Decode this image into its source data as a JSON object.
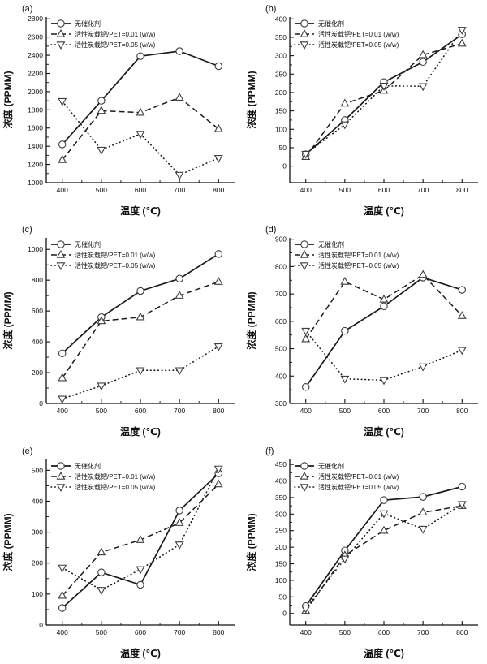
{
  "figure": {
    "background": "#ffffff",
    "axis_color": "#111111",
    "line_color": "#1a1a1a",
    "marker_stroke": "#3d3d3d",
    "marker_fill": "#ffffff"
  },
  "legend_labels": [
    "无催化剂",
    "活性炭载钯/PET=0.01 (w/w)",
    "活性炭载钯/PET=0.05 (w/w)"
  ],
  "chart_data": [
    {
      "panel_label": "(a)",
      "type": "line",
      "x": [
        400,
        500,
        600,
        700,
        800
      ],
      "xlabel": "温度 (℃)",
      "ylabel": "浓度 (PPMM)",
      "ylim": [
        1000,
        2820
      ],
      "yticks": [
        1000,
        1200,
        1400,
        1600,
        1800,
        2000,
        2200,
        2400,
        2600,
        2800
      ],
      "legend_position": "top-left",
      "grid": false,
      "series": [
        {
          "name": "无催化剂",
          "line": "solid",
          "marker": "circle",
          "values": [
            1420,
            1900,
            2390,
            2445,
            2280
          ]
        },
        {
          "name": "活性炭载钯/PET=0.01 (w/w)",
          "line": "dashed",
          "marker": "triangle-up",
          "values": [
            1250,
            1790,
            1770,
            1935,
            1590
          ]
        },
        {
          "name": "活性炭载钯/PET=0.05 (w/w)",
          "line": "dotted",
          "marker": "triangle-down",
          "values": [
            1895,
            1360,
            1535,
            1085,
            1270
          ]
        }
      ]
    },
    {
      "panel_label": "(b)",
      "type": "line",
      "x": [
        400,
        500,
        600,
        700,
        800
      ],
      "xlabel": "温度 (℃)",
      "ylabel": "浓度 (PPMM)",
      "ylim": [
        -45,
        405
      ],
      "yticks": [
        0,
        50,
        100,
        150,
        200,
        250,
        300,
        350,
        400
      ],
      "legend_position": "top-left",
      "grid": false,
      "series": [
        {
          "name": "无催化剂",
          "line": "solid",
          "marker": "circle",
          "values": [
            32,
            125,
            228,
            283,
            358
          ]
        },
        {
          "name": "活性炭载钯/PET=0.01 (w/w)",
          "line": "dashed",
          "marker": "triangle-up",
          "values": [
            25,
            170,
            205,
            302,
            333
          ]
        },
        {
          "name": "活性炭载钯/PET=0.05 (w/w)",
          "line": "dotted",
          "marker": "triangle-down",
          "values": [
            33,
            113,
            218,
            217,
            370
          ]
        }
      ]
    },
    {
      "panel_label": "(c)",
      "type": "line",
      "x": [
        400,
        500,
        600,
        700,
        800
      ],
      "xlabel": "温度 (℃)",
      "ylabel": "浓度 (PPMM)",
      "ylim": [
        0,
        1075
      ],
      "yticks": [
        0,
        200,
        400,
        600,
        800,
        1000
      ],
      "legend_position": "top-left",
      "grid": false,
      "series": [
        {
          "name": "无催化剂",
          "line": "solid",
          "marker": "circle",
          "values": [
            325,
            560,
            730,
            810,
            970
          ]
        },
        {
          "name": "活性炭载钯/PET=0.01 (w/w)",
          "line": "dashed",
          "marker": "triangle-up",
          "values": [
            165,
            535,
            560,
            700,
            790
          ]
        },
        {
          "name": "活性炭载钯/PET=0.05 (w/w)",
          "line": "dotted",
          "marker": "triangle-down",
          "values": [
            30,
            115,
            215,
            215,
            370
          ]
        }
      ]
    },
    {
      "panel_label": "(d)",
      "type": "line",
      "x": [
        400,
        500,
        600,
        700,
        800
      ],
      "xlabel": "温度 (℃)",
      "ylabel": "浓度 (PPMM)",
      "ylim": [
        300,
        905
      ],
      "yticks": [
        300,
        400,
        500,
        600,
        700,
        800,
        900
      ],
      "legend_position": "top-left",
      "grid": false,
      "series": [
        {
          "name": "无催化剂",
          "line": "solid",
          "marker": "circle",
          "values": [
            360,
            565,
            655,
            760,
            715
          ]
        },
        {
          "name": "活性炭载钯/PET=0.01 (w/w)",
          "line": "dashed",
          "marker": "triangle-up",
          "values": [
            535,
            745,
            680,
            770,
            620
          ]
        },
        {
          "name": "活性炭载钯/PET=0.05 (w/w)",
          "line": "dotted",
          "marker": "triangle-down",
          "values": [
            565,
            390,
            385,
            435,
            495
          ]
        }
      ]
    },
    {
      "panel_label": "(e)",
      "type": "line",
      "x": [
        400,
        500,
        600,
        700,
        800
      ],
      "xlabel": "温度 (℃)",
      "ylabel": "浓度 (PPMM)",
      "ylim": [
        0,
        535
      ],
      "yticks": [
        0,
        100,
        200,
        300,
        400,
        500
      ],
      "legend_position": "top-left",
      "grid": false,
      "series": [
        {
          "name": "无催化剂",
          "line": "solid",
          "marker": "circle",
          "values": [
            55,
            170,
            130,
            370,
            490
          ]
        },
        {
          "name": "活性炭载钯/PET=0.01 (w/w)",
          "line": "dashed",
          "marker": "triangle-up",
          "values": [
            95,
            235,
            275,
            330,
            455
          ]
        },
        {
          "name": "活性炭载钯/PET=0.05 (w/w)",
          "line": "dotted",
          "marker": "triangle-down",
          "values": [
            185,
            113,
            180,
            260,
            505
          ]
        }
      ]
    },
    {
      "panel_label": "(f)",
      "type": "line",
      "x": [
        400,
        500,
        600,
        700,
        800
      ],
      "xlabel": "温度 (℃)",
      "ylabel": "浓度 (PPMM)",
      "ylim": [
        -35,
        465
      ],
      "yticks": [
        0,
        50,
        100,
        150,
        200,
        250,
        300,
        350,
        400,
        450
      ],
      "legend_position": "top-left",
      "grid": false,
      "series": [
        {
          "name": "无催化剂",
          "line": "solid",
          "marker": "circle",
          "values": [
            22,
            190,
            342,
            352,
            383
          ]
        },
        {
          "name": "活性炭载钯/PET=0.01 (w/w)",
          "line": "dashed",
          "marker": "triangle-up",
          "values": [
            8,
            175,
            250,
            305,
            325
          ]
        },
        {
          "name": "活性炭载钯/PET=0.05 (w/w)",
          "line": "dotted",
          "marker": "triangle-down",
          "values": [
            15,
            165,
            302,
            255,
            330
          ]
        }
      ]
    }
  ]
}
